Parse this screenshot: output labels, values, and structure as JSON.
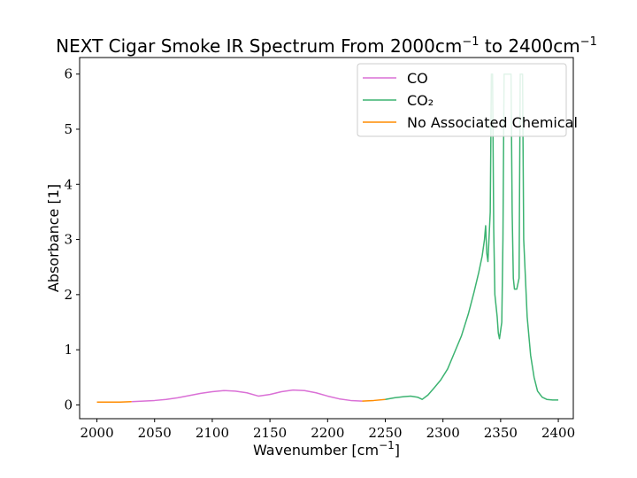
{
  "chart_data": {
    "type": "line",
    "title": "NEXT Cigar Smoke IR Spectrum From 2000cm",
    "title_sup1": "−1",
    "title_mid": " to 2400cm",
    "title_sup2": "−1",
    "xlabel": "Wavenumber [cm",
    "xlabel_sup": "−1",
    "xlabel_end": "]",
    "ylabel": "Absorbance [1]",
    "xlim": [
      1985,
      2413
    ],
    "ylim": [
      -0.25,
      6.3
    ],
    "xticks": [
      2000,
      2050,
      2100,
      2150,
      2200,
      2250,
      2300,
      2350,
      2400
    ],
    "yticks": [
      0,
      1,
      2,
      3,
      4,
      5,
      6
    ],
    "grid": false,
    "legend_position": "top-right",
    "series": [
      {
        "name": "CO",
        "color": "#da70d6",
        "segments": [
          [
            [
              2030,
              0.06
            ],
            [
              2040,
              0.07
            ],
            [
              2050,
              0.08
            ],
            [
              2060,
              0.1
            ],
            [
              2070,
              0.13
            ],
            [
              2080,
              0.17
            ],
            [
              2090,
              0.21
            ],
            [
              2100,
              0.24
            ],
            [
              2110,
              0.26
            ],
            [
              2120,
              0.25
            ],
            [
              2130,
              0.22
            ],
            [
              2140,
              0.16
            ],
            [
              2150,
              0.19
            ],
            [
              2160,
              0.24
            ],
            [
              2170,
              0.27
            ],
            [
              2180,
              0.26
            ],
            [
              2190,
              0.22
            ],
            [
              2200,
              0.16
            ],
            [
              2210,
              0.11
            ],
            [
              2220,
              0.08
            ],
            [
              2230,
              0.07
            ]
          ]
        ]
      },
      {
        "name": "CO₂",
        "color": "#3cb371",
        "segments": [
          [
            [
              2250,
              0.1
            ],
            [
              2258,
              0.13
            ],
            [
              2266,
              0.15
            ],
            [
              2272,
              0.16
            ],
            [
              2278,
              0.14
            ],
            [
              2282,
              0.1
            ],
            [
              2287,
              0.18
            ],
            [
              2292,
              0.3
            ],
            [
              2298,
              0.45
            ],
            [
              2304,
              0.65
            ],
            [
              2310,
              0.95
            ],
            [
              2316,
              1.25
            ],
            [
              2322,
              1.65
            ],
            [
              2327,
              2.05
            ],
            [
              2331,
              2.4
            ],
            [
              2334,
              2.7
            ],
            [
              2336,
              3.0
            ],
            [
              2337,
              3.25
            ],
            [
              2338,
              2.75
            ],
            [
              2339,
              2.6
            ],
            [
              2341,
              3.5
            ],
            [
              2342,
              6.0
            ],
            [
              2343,
              6.0
            ],
            [
              2344,
              3.2
            ],
            [
              2345,
              2.0
            ],
            [
              2347,
              1.6
            ],
            [
              2348,
              1.3
            ],
            [
              2349,
              1.2
            ],
            [
              2351,
              1.5
            ],
            [
              2352,
              3.0
            ],
            [
              2353,
              6.0
            ],
            [
              2356,
              6.0
            ],
            [
              2359,
              6.0
            ],
            [
              2360,
              3.5
            ],
            [
              2361,
              2.3
            ],
            [
              2362,
              2.1
            ],
            [
              2364,
              2.1
            ],
            [
              2366,
              2.3
            ],
            [
              2367,
              6.0
            ],
            [
              2369,
              6.0
            ],
            [
              2370,
              3.0
            ],
            [
              2373,
              1.6
            ],
            [
              2376,
              0.9
            ],
            [
              2379,
              0.5
            ],
            [
              2382,
              0.25
            ],
            [
              2386,
              0.14
            ],
            [
              2390,
              0.1
            ],
            [
              2395,
              0.09
            ],
            [
              2400,
              0.09
            ]
          ]
        ]
      },
      {
        "name": "No Associated Chemical",
        "color": "#ff8c00",
        "segments": [
          [
            [
              2000,
              0.05
            ],
            [
              2010,
              0.05
            ],
            [
              2020,
              0.05
            ],
            [
              2030,
              0.06
            ]
          ],
          [
            [
              2230,
              0.07
            ],
            [
              2240,
              0.08
            ],
            [
              2250,
              0.1
            ]
          ]
        ]
      }
    ]
  }
}
